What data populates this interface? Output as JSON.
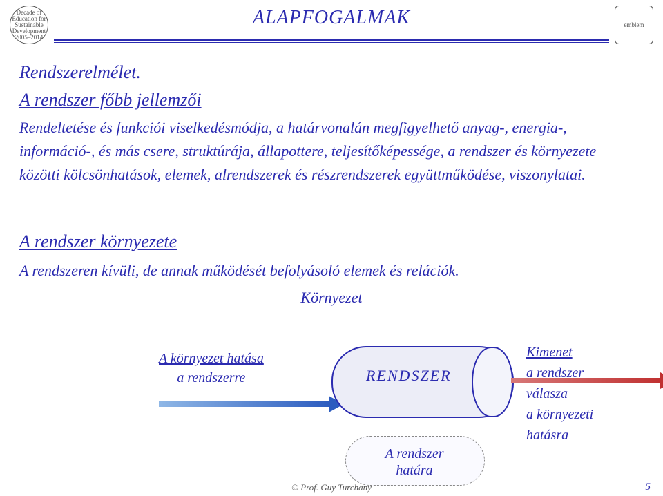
{
  "title": "ALAPFOGALMAK",
  "headings": {
    "h1": "Rendszerelmélet.",
    "h2": "A rendszer főbb jellemzői",
    "h3": "A rendszer környezete"
  },
  "paragraphs": {
    "p1": "Rendeltetése és funkciói viselkedésmódja, a határvonalán megfigyelhető anyag-, energia-, információ-, és más csere, struktúrája, állapottere, teljesítőképessége, a rendszer és környezete közötti kölcsönhatások, elemek, alrendszerek és részrendszerek együttműködése, viszonylatai.",
    "p2": "A rendszeren kívüli, de annak működését befolyásoló elemek és relációk."
  },
  "env_label": "Környezet",
  "diagram": {
    "cylinder_label": "RENDSZER",
    "left_line1": "A környezet hatása",
    "left_line2": "a rendszerre",
    "right_line1": "Kimenet",
    "right_line2": "a rendszer",
    "right_line3": "válasza",
    "right_line4": "a környezeti",
    "right_line5": "hatásra",
    "cloud_line1": "A rendszer",
    "cloud_line2": "határa",
    "colors": {
      "text": "#2b2bb0",
      "arrow_in_start": "#8fb7e6",
      "arrow_in_end": "#2b5bbf",
      "arrow_out_start": "#d77878",
      "arrow_out_end": "#c03030",
      "cylinder_fill": "#ecedf7",
      "cylinder_border": "#2b2bb0",
      "background": "#ffffff"
    }
  },
  "footer": "© Prof. Guy Turchany",
  "page_number": "5",
  "logo_left_alt": "Decade of Education for Sustainable Development 2005–2014",
  "logo_right_alt": "emblem"
}
